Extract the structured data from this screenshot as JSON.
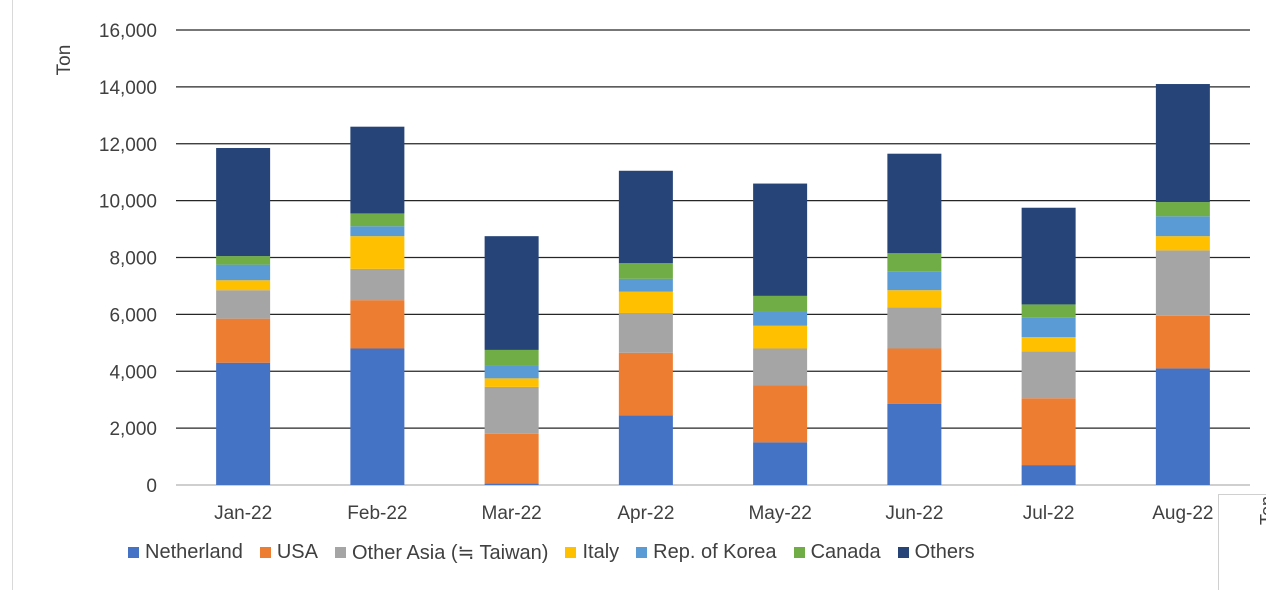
{
  "chart_data": {
    "type": "bar",
    "stacked": true,
    "title": "",
    "xlabel": "",
    "ylabel": "Ton",
    "ylim": [
      0,
      16000
    ],
    "yticks": [
      "0",
      "2,000",
      "4,000",
      "6,000",
      "8,000",
      "10,000",
      "12,000",
      "14,000",
      "16,000"
    ],
    "categories": [
      "Jan-22",
      "Feb-22",
      "Mar-22",
      "Apr-22",
      "May-22",
      "Jun-22",
      "Jul-22",
      "Aug-22"
    ],
    "grid": true,
    "legend_position": "bottom",
    "series": [
      {
        "name": "Netherland",
        "color": "#4472c4",
        "values": [
          4300,
          4800,
          50,
          2450,
          1500,
          2850,
          700,
          4100
        ]
      },
      {
        "name": "USA",
        "color": "#ed7d31",
        "values": [
          1550,
          1700,
          1750,
          2200,
          2000,
          1950,
          2350,
          1850
        ]
      },
      {
        "name": "Other Asia (≒ Taiwan)",
        "color": "#a5a5a5",
        "values": [
          1000,
          1100,
          1650,
          1400,
          1300,
          1450,
          1650,
          2300
        ]
      },
      {
        "name": "Italy",
        "color": "#ffc000",
        "values": [
          350,
          1150,
          300,
          750,
          800,
          600,
          500,
          500
        ]
      },
      {
        "name": "Rep. of Korea",
        "color": "#5b9bd5",
        "values": [
          550,
          350,
          450,
          450,
          500,
          650,
          700,
          700
        ]
      },
      {
        "name": "Canada",
        "color": "#70ad47",
        "values": [
          300,
          450,
          550,
          550,
          550,
          650,
          450,
          500
        ]
      },
      {
        "name": "Others",
        "color": "#264478",
        "values": [
          3800,
          3050,
          4000,
          3250,
          3950,
          3500,
          3400,
          4150
        ]
      }
    ]
  },
  "overlap_panel": {
    "text": "Ton"
  }
}
